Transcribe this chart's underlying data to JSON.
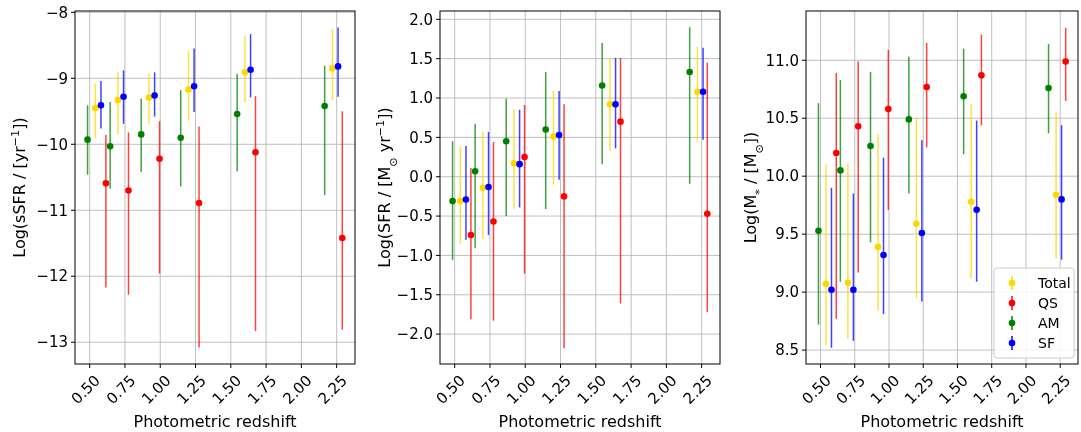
{
  "chart_data": [
    {
      "type": "scatter",
      "xlabel": "Photometric redshift",
      "ylabel": "Log(sSFR / [yr$^{−1}$])",
      "xlim": [
        0.396,
        2.38
      ],
      "ylim": [
        -13.33,
        -7.98
      ],
      "xticks": [
        {
          "value": 0.5,
          "label": "0.50"
        },
        {
          "value": 0.75,
          "label": "0.75"
        },
        {
          "value": 1,
          "label": "1.00"
        },
        {
          "value": 1.25,
          "label": "1.25"
        },
        {
          "value": 1.5,
          "label": "1.50"
        },
        {
          "value": 1.75,
          "label": "1.75"
        },
        {
          "value": 2,
          "label": "2.00"
        },
        {
          "value": 2.25,
          "label": "2.25"
        }
      ],
      "yticks": [
        {
          "value": -13,
          "label": "−13"
        },
        {
          "value": -12,
          "label": "−12"
        },
        {
          "value": -11,
          "label": "−11"
        },
        {
          "value": -10,
          "label": "−10"
        },
        {
          "value": -9,
          "label": "−9"
        },
        {
          "value": -8,
          "label": "−8"
        }
      ],
      "grid": true,
      "marker": "circle",
      "legend": false,
      "series": [
        {
          "color": "#ffd700",
          "x": [
            0.54,
            0.7,
            0.92,
            1.2,
            1.6,
            2.22
          ],
          "values": [
            -9.45,
            -9.33,
            -9.29,
            -9.17,
            -8.91,
            -8.85
          ],
          "errors": [
            [
              -9.91,
              -9.08
            ],
            [
              -9.85,
              -8.91
            ],
            [
              -9.69,
              -8.93
            ],
            [
              -9.64,
              -8.59
            ],
            [
              -9.37,
              -8.36
            ],
            [
              -9.33,
              -8.25
            ]
          ]
        },
        {
          "color": "#ff0000",
          "x": [
            0.615,
            0.775,
            0.995,
            1.275,
            1.675,
            2.29
          ],
          "values": [
            -10.59,
            -10.7,
            -10.22,
            -10.89,
            -10.12,
            -11.42
          ],
          "errors": [
            [
              -12.17,
              -9.86
            ],
            [
              -12.28,
              -9.82
            ],
            [
              -11.96,
              -9.65
            ],
            [
              -13.08,
              -9.73
            ],
            [
              -12.83,
              -9.27
            ],
            [
              -12.81,
              -9.5
            ]
          ]
        },
        {
          "color": "#008000",
          "x": [
            0.485,
            0.645,
            0.865,
            1.145,
            1.545,
            2.165
          ],
          "values": [
            -9.93,
            -10.03,
            -9.85,
            -9.9,
            -9.54,
            -9.42
          ],
          "errors": [
            [
              -10.46,
              -9.41
            ],
            [
              -10.67,
              -9.36
            ],
            [
              -10.42,
              -9.31
            ],
            [
              -10.64,
              -9.18
            ],
            [
              -10.41,
              -8.93
            ],
            [
              -10.77,
              -8.81
            ]
          ]
        },
        {
          "color": "#0000ff",
          "x": [
            0.58,
            0.74,
            0.96,
            1.24,
            1.64,
            2.26
          ],
          "values": [
            -9.41,
            -9.28,
            -9.26,
            -9.12,
            -8.87,
            -8.82
          ],
          "errors": [
            [
              -9.76,
              -9.04
            ],
            [
              -9.69,
              -8.88
            ],
            [
              -9.58,
              -8.91
            ],
            [
              -9.51,
              -8.55
            ],
            [
              -9.29,
              -8.33
            ],
            [
              -9.28,
              -8.23
            ]
          ]
        }
      ]
    },
    {
      "type": "scatter",
      "xlabel": "Photometric redshift",
      "ylabel": "Log(SFR / [M$_{⊙}$ yr$^{−1}$])",
      "xlim": [
        0.396,
        2.38
      ],
      "ylim": [
        -2.38,
        2.106
      ],
      "xticks": [
        {
          "value": 0.5,
          "label": "0.50"
        },
        {
          "value": 0.75,
          "label": "0.75"
        },
        {
          "value": 1,
          "label": "1.00"
        },
        {
          "value": 1.25,
          "label": "1.25"
        },
        {
          "value": 1.5,
          "label": "1.50"
        },
        {
          "value": 1.75,
          "label": "1.75"
        },
        {
          "value": 2,
          "label": "2.00"
        },
        {
          "value": 2.25,
          "label": "2.25"
        }
      ],
      "yticks": [
        {
          "value": -2,
          "label": "−2.0"
        },
        {
          "value": -1.5,
          "label": "−1.5"
        },
        {
          "value": -1,
          "label": "−1.0"
        },
        {
          "value": -0.5,
          "label": "−0.5"
        },
        {
          "value": 0,
          "label": "0.0"
        },
        {
          "value": 0.5,
          "label": "0.5"
        },
        {
          "value": 1,
          "label": "1.0"
        },
        {
          "value": 1.5,
          "label": "1.5"
        },
        {
          "value": 2,
          "label": "2.0"
        }
      ],
      "grid": true,
      "marker": "circle",
      "legend": false,
      "series": [
        {
          "color": "#ffd700",
          "x": [
            0.54,
            0.7,
            0.92,
            1.2,
            1.6,
            2.22
          ],
          "values": [
            -0.31,
            -0.14,
            0.17,
            0.51,
            0.92,
            1.08
          ],
          "errors": [
            [
              -0.85,
              0.38
            ],
            [
              -0.79,
              0.57
            ],
            [
              -0.41,
              0.86
            ],
            [
              -0.1,
              1.09
            ],
            [
              0.33,
              1.51
            ],
            [
              0.44,
              1.65
            ]
          ]
        },
        {
          "color": "#ff0000",
          "x": [
            0.615,
            0.775,
            0.995,
            1.275,
            1.675,
            2.29
          ],
          "values": [
            -0.74,
            -0.57,
            0.25,
            -0.25,
            0.7,
            -0.47
          ],
          "errors": [
            [
              -1.81,
              0.11
            ],
            [
              -1.83,
              0.44
            ],
            [
              -1.23,
              0.91
            ],
            [
              -2.18,
              0.92
            ],
            [
              -1.61,
              1.51
            ],
            [
              -1.72,
              1.45
            ]
          ]
        },
        {
          "color": "#008000",
          "x": [
            0.485,
            0.645,
            0.865,
            1.145,
            1.545,
            2.165
          ],
          "values": [
            -0.31,
            0.07,
            0.45,
            0.6,
            1.16,
            1.33
          ],
          "errors": [
            [
              -1.06,
              0.45
            ],
            [
              -0.91,
              0.67
            ],
            [
              -0.5,
              0.99
            ],
            [
              -0.41,
              1.33
            ],
            [
              0.16,
              1.7
            ],
            [
              -0.09,
              1.9
            ]
          ]
        },
        {
          "color": "#0000ff",
          "x": [
            0.58,
            0.74,
            0.96,
            1.24,
            1.64,
            2.26
          ],
          "values": [
            -0.29,
            -0.13,
            0.16,
            0.53,
            0.92,
            1.08
          ],
          "errors": [
            [
              -0.8,
              0.39
            ],
            [
              -0.74,
              0.57
            ],
            [
              -0.39,
              0.85
            ],
            [
              -0.04,
              1.09
            ],
            [
              0.36,
              1.51
            ],
            [
              0.47,
              1.64
            ]
          ]
        }
      ]
    },
    {
      "type": "scatter",
      "xlabel": "Photometric redshift",
      "ylabel": "Log(M$_{*}$ / [M$_{⊙}$])",
      "xlim": [
        0.394,
        2.38
      ],
      "ylim": [
        8.38,
        11.425
      ],
      "xticks": [
        {
          "value": 0.5,
          "label": "0.50"
        },
        {
          "value": 0.75,
          "label": "0.75"
        },
        {
          "value": 1,
          "label": "1.00"
        },
        {
          "value": 1.25,
          "label": "1.25"
        },
        {
          "value": 1.5,
          "label": "1.50"
        },
        {
          "value": 1.75,
          "label": "1.75"
        },
        {
          "value": 2,
          "label": "2.00"
        },
        {
          "value": 2.25,
          "label": "2.25"
        }
      ],
      "yticks": [
        {
          "value": 8.5,
          "label": "8.5"
        },
        {
          "value": 9,
          "label": "9.0"
        },
        {
          "value": 9.5,
          "label": "9.5"
        },
        {
          "value": 10,
          "label": "10.0"
        },
        {
          "value": 10.5,
          "label": "10.5"
        },
        {
          "value": 11,
          "label": "11.0"
        }
      ],
      "grid": true,
      "marker": "circle",
      "legend": "bottom right",
      "series": [
        {
          "name": "Total",
          "color": "#ffd700",
          "x": [
            0.54,
            0.7,
            0.92,
            1.2,
            1.6,
            2.22
          ],
          "values": [
            9.07,
            9.08,
            9.39,
            9.59,
            9.78,
            9.84
          ],
          "errors": [
            [
              8.54,
              10.1
            ],
            [
              8.6,
              10.11
            ],
            [
              8.84,
              10.36
            ],
            [
              8.95,
              10.5
            ],
            [
              9.12,
              10.62
            ],
            [
              9.29,
              10.55
            ]
          ]
        },
        {
          "name": "QS",
          "color": "#ff0000",
          "x": [
            0.615,
            0.775,
            0.995,
            1.275,
            1.675,
            2.29
          ],
          "values": [
            10.2,
            10.43,
            10.58,
            10.77,
            10.87,
            10.99
          ],
          "errors": [
            [
              8.77,
              10.89
            ],
            [
              9.17,
              10.99
            ],
            [
              9.71,
              11.09
            ],
            [
              10.25,
              11.15
            ],
            [
              10.44,
              11.22
            ],
            [
              10.65,
              11.28
            ]
          ]
        },
        {
          "name": "AM",
          "color": "#008000",
          "x": [
            0.485,
            0.645,
            0.865,
            1.145,
            1.545,
            2.165
          ],
          "values": [
            9.53,
            10.05,
            10.26,
            10.49,
            10.69,
            10.76
          ],
          "errors": [
            [
              8.72,
              10.63
            ],
            [
              9.09,
              10.83
            ],
            [
              9.43,
              10.9
            ],
            [
              9.85,
              11.03
            ],
            [
              10.19,
              11.1
            ],
            [
              10.37,
              11.14
            ]
          ]
        },
        {
          "name": "SF",
          "color": "#0000ff",
          "x": [
            0.58,
            0.74,
            0.96,
            1.24,
            1.64,
            2.26
          ],
          "values": [
            9.02,
            9.02,
            9.32,
            9.51,
            9.71,
            9.8
          ],
          "errors": [
            [
              8.52,
              9.9
            ],
            [
              8.58,
              9.85
            ],
            [
              8.81,
              10.16
            ],
            [
              8.92,
              10.31
            ],
            [
              9.09,
              10.48
            ],
            [
              9.28,
              10.44
            ]
          ]
        }
      ]
    }
  ]
}
